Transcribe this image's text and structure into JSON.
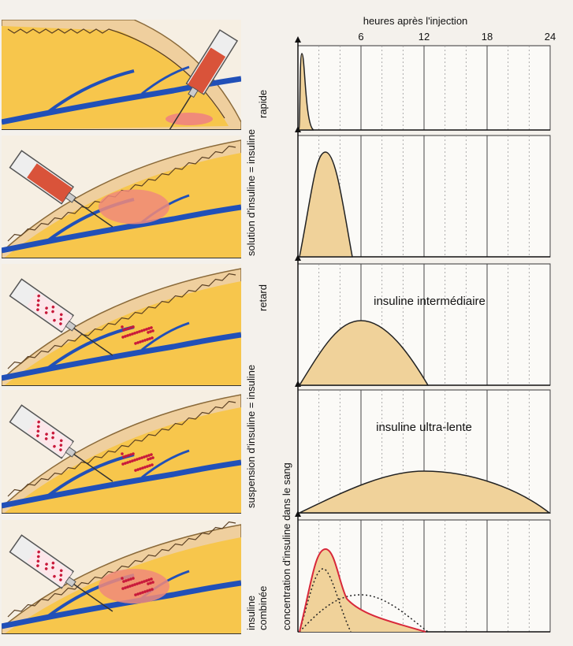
{
  "x_axis": {
    "title": "heures après l'injection",
    "xlim": [
      0,
      24
    ],
    "xticks": [
      6,
      12,
      18,
      24
    ],
    "minor_grid": [
      2,
      4,
      8,
      10,
      14,
      16,
      20,
      22
    ]
  },
  "y_axis": {
    "title": "concentration d'insuline dans le sang"
  },
  "labels": {
    "rapid": [
      "solution d'insuline = insuline",
      "rapide"
    ],
    "retard": [
      "suspension d'insuline = insuline",
      "retard"
    ],
    "combined": [
      "insuline",
      "combinée"
    ]
  },
  "chart_labels": {
    "intermediate": "insuline intermédiaire",
    "ultra_slow": "insuline ultra-lente"
  }
}
